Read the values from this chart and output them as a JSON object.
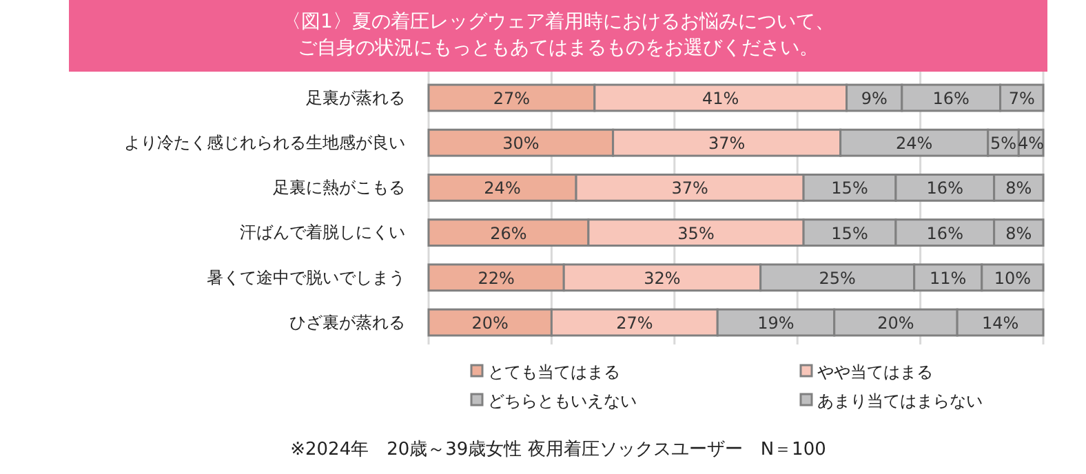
{
  "chart_data": {
    "type": "bar",
    "orientation": "horizontal",
    "stacked": true,
    "title": "〈図1〉夏の着圧レッグウェア着用時におけるお悩みについて、ご自身の状況にもっともあてはまるものをお選びください。",
    "categories": [
      "足裏が蒸れる",
      "より冷たく感じれられる生地感が良い",
      "足裏に熱がこもる",
      "汗ばんで着脱しにくい",
      "暑くて途中で脱いでしまう",
      "ひざ裏が蒸れる"
    ],
    "series": [
      {
        "name": "とても当てはまる",
        "color": "#eeae98",
        "values": [
          27,
          30,
          24,
          26,
          22,
          20
        ],
        "value_labels": [
          "27%",
          "30%",
          "24%",
          "26%",
          "22%",
          "20%"
        ]
      },
      {
        "name": "やや当てはまる",
        "color": "#f8c6ba",
        "values": [
          41,
          37,
          37,
          35,
          32,
          27
        ],
        "value_labels": [
          "41%",
          "37%",
          "37%",
          "35%",
          "32%",
          "27%"
        ]
      },
      {
        "name": "どちらともいえない",
        "color": "#bfbfc0",
        "values": [
          9,
          24,
          15,
          15,
          25,
          19
        ],
        "value_labels": [
          "9%",
          "24%",
          "15%",
          "15%",
          "25%",
          "19%"
        ]
      },
      {
        "name": "あまり当てはまらない",
        "color": "#bfbfc0",
        "values": [
          16,
          5,
          16,
          16,
          11,
          20
        ],
        "value_labels": [
          "16%",
          "5%",
          "16%",
          "16%",
          "11%",
          "20%"
        ]
      },
      {
        "color": "#bfbfc0",
        "values": [
          7,
          4,
          8,
          8,
          10,
          14
        ],
        "value_labels": [
          "7%",
          "4%",
          "8%",
          "8%",
          "10%",
          "14%"
        ]
      }
    ],
    "tick_labels": "y",
    "grid": "x",
    "legend": "bottom",
    "annotations": [
      "※2024年　20歳～39歳女性 夜用着圧ソックスユーザー　N＝100"
    ]
  }
}
